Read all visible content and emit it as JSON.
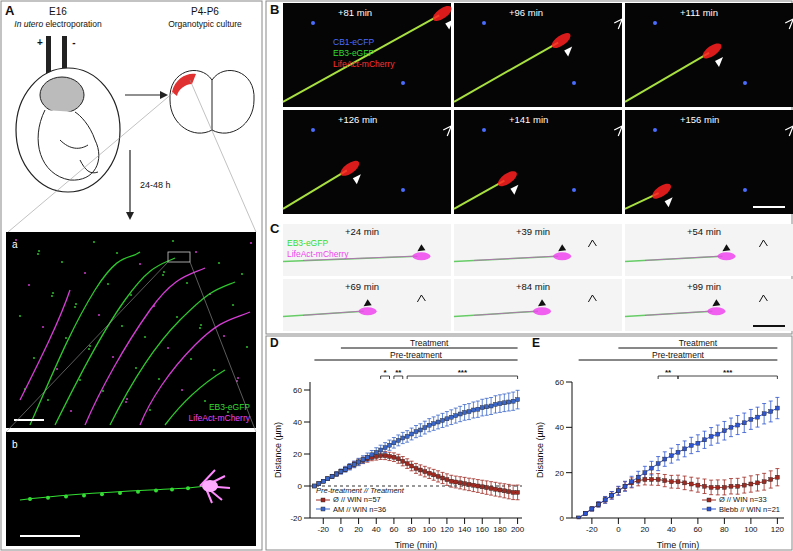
{
  "panels": {
    "A": {
      "label": "A",
      "stage_left": "E16",
      "method": "In utero electroporation",
      "plus": "+",
      "minus": "-",
      "stage_right": "P4-P6",
      "culture": "Organotypic culture",
      "duration": "24-48 h",
      "a": {
        "label": "a",
        "channels": [
          "EB3-eGFP",
          "LifeAct-mCherry"
        ]
      },
      "b": {
        "label": "b"
      }
    },
    "B": {
      "label": "B",
      "times": [
        "+81 min",
        "+96 min",
        "+111 min",
        "+126 min",
        "+141 min",
        "+156 min"
      ],
      "channels": [
        "CB1-eCFP",
        "EB3-eGFP",
        "LifeAct-mCherry"
      ]
    },
    "C": {
      "label": "C",
      "times": [
        "+24 min",
        "+39 min",
        "+54 min",
        "+69 min",
        "+84 min",
        "+99 min"
      ],
      "channels": [
        "EB3-eGFP",
        "LifeAct-mCherry"
      ]
    }
  },
  "chart_data": [
    {
      "label": "D",
      "type": "line",
      "x_label": "Time (min)",
      "y_label": "Distance (µm)",
      "x": [
        -30,
        -25,
        -20,
        -15,
        -10,
        -5,
        0,
        5,
        10,
        15,
        20,
        25,
        30,
        35,
        40,
        45,
        50,
        55,
        60,
        65,
        70,
        75,
        80,
        85,
        90,
        95,
        100,
        105,
        110,
        115,
        120,
        125,
        130,
        135,
        140,
        145,
        150,
        155,
        160,
        165,
        170,
        175,
        180,
        185,
        190,
        195,
        200
      ],
      "xlim": [
        -35,
        205
      ],
      "xticks": [
        -20,
        0,
        20,
        40,
        60,
        80,
        100,
        120,
        140,
        160,
        180,
        200
      ],
      "ylim": [
        -20,
        65
      ],
      "yticks": [
        -20,
        0,
        20,
        40,
        60
      ],
      "legend": "lower left",
      "legend_title": "Pre-treatment // Treatment",
      "reference_line": {
        "y": 0,
        "line_style": "dashed"
      },
      "periods": [
        {
          "label": "Treatment",
          "x": [
            0,
            200
          ]
        },
        {
          "label": "Pre-treatment",
          "x": [
            -30,
            200
          ]
        }
      ],
      "significance": [
        {
          "label": "*",
          "x": [
            45,
            55
          ]
        },
        {
          "label": "**",
          "x": [
            60,
            70
          ]
        },
        {
          "label": "***",
          "x": [
            75,
            200
          ]
        }
      ],
      "series": [
        {
          "name": "Ø // WIN n=57",
          "color": "#9e2a22",
          "marker": "square",
          "values": [
            0,
            1.5,
            3,
            4.5,
            6,
            7.5,
            9,
            10.5,
            12,
            13.5,
            15,
            16,
            17,
            18,
            18.5,
            19,
            19,
            18.5,
            18,
            17,
            15.5,
            14,
            12.5,
            11,
            10,
            9,
            8,
            7,
            6,
            5,
            4,
            3,
            2.5,
            2,
            1.5,
            1,
            0.5,
            0,
            -0.5,
            -1,
            -1.5,
            -2,
            -2.5,
            -3,
            -3.5,
            -4,
            -4
          ],
          "errors": [
            0.3,
            0.5,
            0.7,
            0.9,
            1,
            1.2,
            1.3,
            1.5,
            1.6,
            1.8,
            1.9,
            2,
            2.1,
            2.2,
            2.3,
            2.4,
            2.5,
            2.6,
            2.7,
            2.8,
            2.9,
            3,
            3,
            3.1,
            3.2,
            3.3,
            3.3,
            3.4,
            3.5,
            3.5,
            3.6,
            3.7,
            3.7,
            3.8,
            3.9,
            3.9,
            4,
            4,
            4.1,
            4.2,
            4.2,
            4.3,
            4.3,
            4.4,
            4.5,
            4.5,
            4.6
          ]
        },
        {
          "name": "AM // WIN n=36",
          "color": "#3a66c8",
          "marker": "square",
          "values": [
            0,
            1.5,
            3,
            4.5,
            6,
            7.5,
            9,
            10.5,
            12,
            13.5,
            15,
            16.5,
            18,
            19.5,
            21,
            22.5,
            24,
            25.5,
            27,
            28.5,
            30,
            31,
            32.5,
            34,
            35,
            36.5,
            38,
            39,
            40,
            41,
            42,
            43,
            44,
            45,
            46,
            46.5,
            47.5,
            48,
            49,
            49.5,
            50,
            51,
            51.5,
            52,
            52.5,
            53,
            54
          ],
          "errors": [
            0.3,
            0.6,
            0.8,
            1,
            1.2,
            1.4,
            1.6,
            1.8,
            2,
            2.1,
            2.3,
            2.4,
            2.6,
            2.7,
            2.9,
            3,
            3.1,
            3.2,
            3.3,
            3.4,
            3.5,
            3.6,
            3.7,
            3.8,
            3.9,
            4,
            4.1,
            4.2,
            4.3,
            4.4,
            4.5,
            4.6,
            4.7,
            4.8,
            4.9,
            5,
            5,
            5.1,
            5.2,
            5.3,
            5.3,
            5.4,
            5.5,
            5.5,
            5.6,
            5.7,
            5.8
          ]
        }
      ]
    },
    {
      "label": "E",
      "type": "line",
      "x_label": "Time (min)",
      "y_label": "Distance (µm)",
      "x": [
        -30,
        -25,
        -20,
        -15,
        -10,
        -5,
        0,
        5,
        10,
        15,
        20,
        25,
        30,
        35,
        40,
        45,
        50,
        55,
        60,
        65,
        70,
        75,
        80,
        85,
        90,
        95,
        100,
        105,
        110,
        115,
        120
      ],
      "xlim": [
        -35,
        125
      ],
      "xticks": [
        -20,
        0,
        20,
        40,
        60,
        80,
        100,
        120
      ],
      "ylim": [
        0,
        60
      ],
      "yticks": [
        0,
        20,
        40,
        60
      ],
      "legend": "lower right",
      "periods": [
        {
          "label": "Treatment",
          "x": [
            0,
            120
          ]
        },
        {
          "label": "Pre-treatment",
          "x": [
            -30,
            120
          ]
        }
      ],
      "significance": [
        {
          "label": "**",
          "x": [
            30,
            45
          ]
        },
        {
          "label": "***",
          "x": [
            45,
            120
          ]
        }
      ],
      "series": [
        {
          "name": "Ø // WIN n=33",
          "color": "#9e2a22",
          "marker": "square",
          "values": [
            0,
            2,
            4,
            6,
            8,
            10,
            12,
            14,
            15.5,
            16.5,
            17,
            17,
            17,
            16.5,
            16,
            16,
            15.5,
            15,
            14.5,
            14,
            13.5,
            13.5,
            13.5,
            14,
            14,
            14.5,
            15,
            15.5,
            16,
            17,
            18
          ],
          "errors": [
            0.3,
            0.6,
            0.9,
            1.1,
            1.4,
            1.6,
            1.8,
            2,
            2.2,
            2.3,
            2.4,
            2.5,
            2.6,
            2.7,
            2.8,
            2.9,
            3,
            3,
            3.1,
            3.2,
            3.2,
            3.3,
            3.3,
            3.4,
            3.5,
            3.5,
            3.6,
            3.6,
            3.7,
            3.8,
            3.8
          ]
        },
        {
          "name": "Blebb // WIN n=21",
          "color": "#2f55d0",
          "marker": "square",
          "values": [
            0,
            2,
            4,
            6,
            8,
            10,
            12,
            14,
            16,
            18,
            20,
            22,
            24,
            26,
            27.5,
            29,
            30.5,
            32,
            33,
            34.5,
            36,
            37,
            38.5,
            40,
            41,
            42,
            43.5,
            44.5,
            46,
            47,
            48.5
          ],
          "errors": [
            0.3,
            0.6,
            0.9,
            1.2,
            1.5,
            1.7,
            2,
            2.2,
            2.4,
            2.6,
            2.8,
            3,
            3.1,
            3.2,
            3.3,
            3.4,
            3.5,
            3.6,
            3.7,
            3.8,
            3.9,
            4,
            4.1,
            4.1,
            4.2,
            4.3,
            4.4,
            4.4,
            4.5,
            4.6,
            4.7
          ]
        }
      ]
    }
  ]
}
